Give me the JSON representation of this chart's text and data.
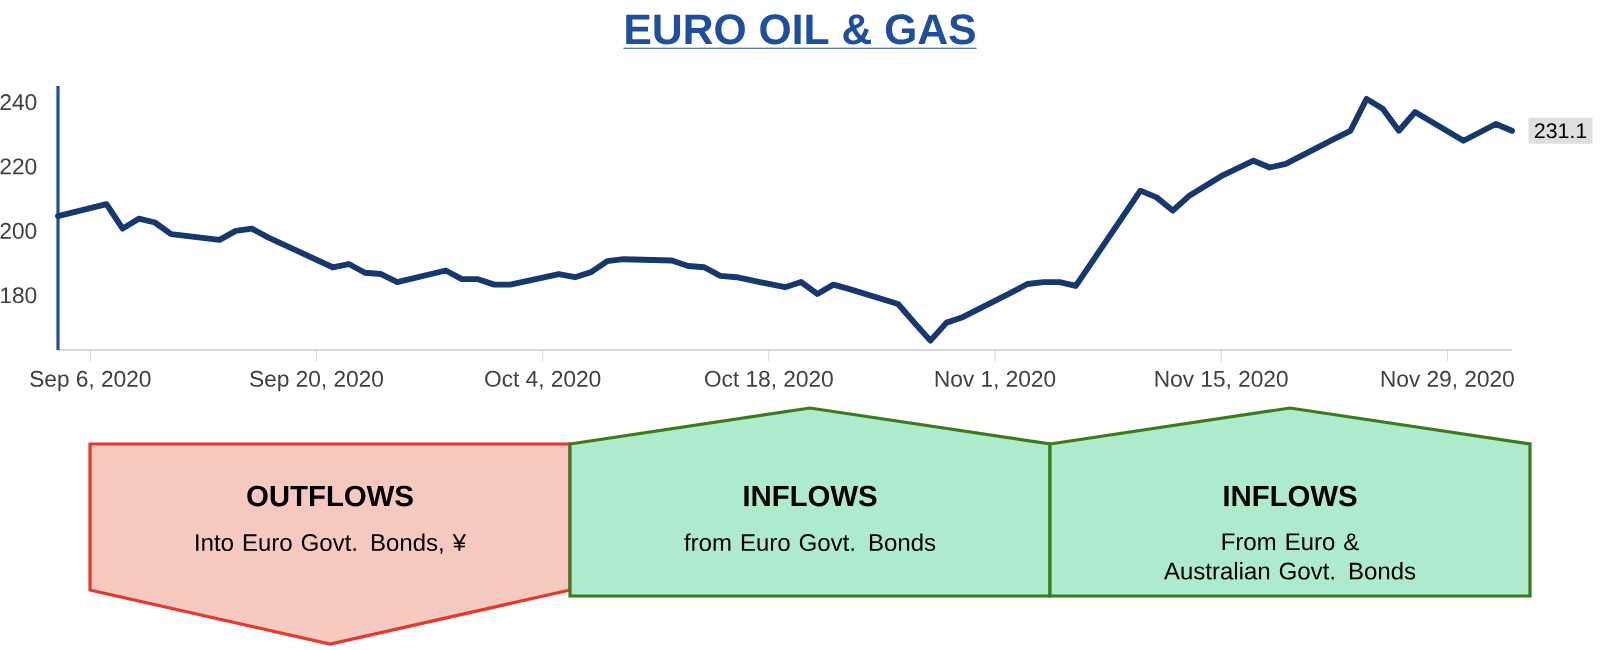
{
  "chart_data": {
    "type": "line",
    "title": "EURO OIL & GAS",
    "x": [
      "2020-09-04",
      "2020-09-07",
      "2020-09-08",
      "2020-09-09",
      "2020-09-10",
      "2020-09-11",
      "2020-09-14",
      "2020-09-15",
      "2020-09-16",
      "2020-09-17",
      "2020-09-21",
      "2020-09-22",
      "2020-09-23",
      "2020-09-24",
      "2020-09-25",
      "2020-09-28",
      "2020-09-29",
      "2020-09-30",
      "2020-10-01",
      "2020-10-02",
      "2020-10-05",
      "2020-10-06",
      "2020-10-07",
      "2020-10-08",
      "2020-10-09",
      "2020-10-12",
      "2020-10-13",
      "2020-10-14",
      "2020-10-15",
      "2020-10-16",
      "2020-10-19",
      "2020-10-20",
      "2020-10-21",
      "2020-10-22",
      "2020-10-23",
      "2020-10-26",
      "2020-10-27",
      "2020-10-28",
      "2020-10-29",
      "2020-10-30",
      "2020-11-02",
      "2020-11-03",
      "2020-11-04",
      "2020-11-05",
      "2020-11-06",
      "2020-11-10",
      "2020-11-11",
      "2020-11-12",
      "2020-11-13",
      "2020-11-15",
      "2020-11-17",
      "2020-11-18",
      "2020-11-19",
      "2020-11-22",
      "2020-11-23",
      "2020-11-24",
      "2020-11-25",
      "2020-11-26",
      "2020-11-27",
      "2020-11-30",
      "2020-12-02",
      "2020-12-03"
    ],
    "series": [
      {
        "color": "#17386e",
        "values": [
          204.6,
          208.3,
          200.7,
          203.8,
          202.6,
          199,
          197.2,
          200,
          200.7,
          198,
          188.7,
          189.7,
          187,
          186.6,
          184.1,
          187.7,
          185,
          185,
          183.3,
          183.3,
          186.6,
          185.6,
          187.2,
          190.6,
          191.2,
          190.8,
          189.1,
          188.7,
          186,
          185.6,
          182.5,
          184.1,
          180.4,
          183.3,
          181.9,
          177.3,
          171.5,
          165.9,
          171.5,
          173.2,
          180.8,
          183.5,
          184.1,
          184.1,
          182.9,
          212.5,
          210.4,
          206.3,
          210.8,
          217,
          221.8,
          219.7,
          220.8,
          228.6,
          231.1,
          241,
          237.9,
          231.1,
          236.9,
          228,
          233.2,
          231.1
        ],
        "value_labels": [
          null,
          null,
          null,
          null,
          null,
          null,
          null,
          null,
          null,
          null,
          null,
          null,
          null,
          null,
          null,
          null,
          null,
          null,
          null,
          null,
          null,
          null,
          null,
          null,
          null,
          null,
          null,
          null,
          null,
          null,
          null,
          null,
          null,
          null,
          null,
          null,
          null,
          null,
          null,
          null,
          null,
          null,
          null,
          null,
          null,
          null,
          null,
          null,
          null,
          null,
          null,
          null,
          null,
          null,
          null,
          null,
          null,
          null,
          null,
          null,
          null,
          "231.1"
        ]
      }
    ],
    "xlim": [
      "2020-09-04",
      "2020-12-03"
    ],
    "xticks": [
      {
        "value": "2020-09-06",
        "label": "Sep 6, 2020"
      },
      {
        "value": "2020-09-20",
        "label": "Sep 20, 2020"
      },
      {
        "value": "2020-10-04",
        "label": "Oct 4, 2020"
      },
      {
        "value": "2020-10-18",
        "label": "Oct 18, 2020"
      },
      {
        "value": "2020-11-01",
        "label": "Nov 1, 2020"
      },
      {
        "value": "2020-11-15",
        "label": "Nov 15, 2020"
      },
      {
        "value": "2020-11-29",
        "label": "Nov 29, 2020"
      }
    ],
    "ylim": [
      163,
      245
    ],
    "yticks": [
      180,
      200,
      220,
      240
    ],
    "grid": false,
    "marker": "none",
    "line_style": "solid",
    "annotations": [
      "OUTFLOWS",
      "Into Euro Govt. Bonds, ¥",
      "INFLOWS",
      "from Euro Govt. Bonds",
      "INFLOWS",
      "From Euro & Australian Govt. Bonds"
    ]
  }
}
